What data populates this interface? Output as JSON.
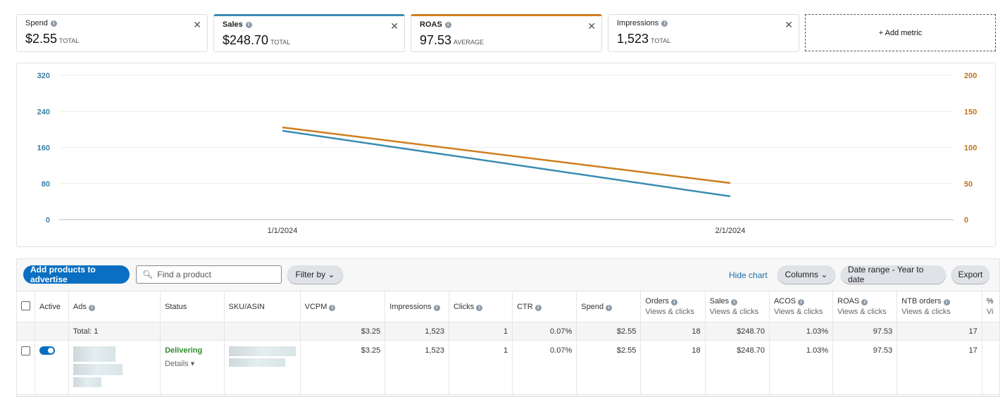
{
  "metrics": [
    {
      "label": "Spend",
      "value": "$2.55",
      "agg": "TOTAL"
    },
    {
      "label": "Sales",
      "value": "$248.70",
      "agg": "TOTAL"
    },
    {
      "label": "ROAS",
      "value": "97.53",
      "agg": "AVERAGE"
    },
    {
      "label": "Impressions",
      "value": "1,523",
      "agg": "TOTAL"
    }
  ],
  "add_metric": "+ Add metric",
  "chart_data": {
    "type": "line",
    "x": [
      "1/1/2024",
      "2/1/2024"
    ],
    "series": [
      {
        "name": "Sales",
        "axis": "left",
        "color": "#3a8cb4",
        "values": [
          197,
          51.7
        ]
      },
      {
        "name": "ROAS",
        "axis": "right",
        "color": "#d07d1e",
        "values": [
          127.8,
          50.7
        ]
      }
    ],
    "y_left": {
      "ticks": [
        "0",
        "80",
        "160",
        "240",
        "320"
      ],
      "range": [
        0,
        320
      ]
    },
    "y_right": {
      "ticks": [
        "0",
        "50",
        "100",
        "150",
        "200"
      ],
      "range": [
        0,
        200
      ]
    }
  },
  "toolbar": {
    "add_products": "Add products to advertise",
    "search_placeholder": "Find a product",
    "filter": "Filter by",
    "hide_chart": "Hide chart",
    "columns": "Columns",
    "date_range": "Date range - Year to date",
    "export": "Export"
  },
  "table": {
    "headers": [
      {
        "t": "Active"
      },
      {
        "t": "Ads",
        "i": 1
      },
      {
        "t": "Status"
      },
      {
        "t": "SKU/ASIN"
      },
      {
        "t": "VCPM",
        "i": 1
      },
      {
        "t": "Impressions",
        "i": 1
      },
      {
        "t": "Clicks",
        "i": 1
      },
      {
        "t": "CTR",
        "i": 1
      },
      {
        "t": "Spend",
        "i": 1
      },
      {
        "t": "Orders",
        "i": 1,
        "s": "Views & clicks"
      },
      {
        "t": "Sales",
        "i": 1,
        "s": "Views & clicks"
      },
      {
        "t": "ACOS",
        "i": 1,
        "s": "Views & clicks"
      },
      {
        "t": "ROAS",
        "i": 1,
        "s": "Views & clicks"
      },
      {
        "t": "NTB orders",
        "i": 1,
        "s": "Views & clicks"
      },
      {
        "t": "%",
        "s": "Vi"
      }
    ],
    "total_label": "Total: 1",
    "totals": [
      "$3.25",
      "1,523",
      "1",
      "0.07%",
      "$2.55",
      "18",
      "$248.70",
      "1.03%",
      "97.53",
      "17"
    ],
    "row": {
      "status": "Delivering",
      "details": "Details ▾",
      "values": [
        "$3.25",
        "1,523",
        "1",
        "0.07%",
        "$2.55",
        "18",
        "$248.70",
        "1.03%",
        "97.53",
        "17"
      ]
    }
  }
}
